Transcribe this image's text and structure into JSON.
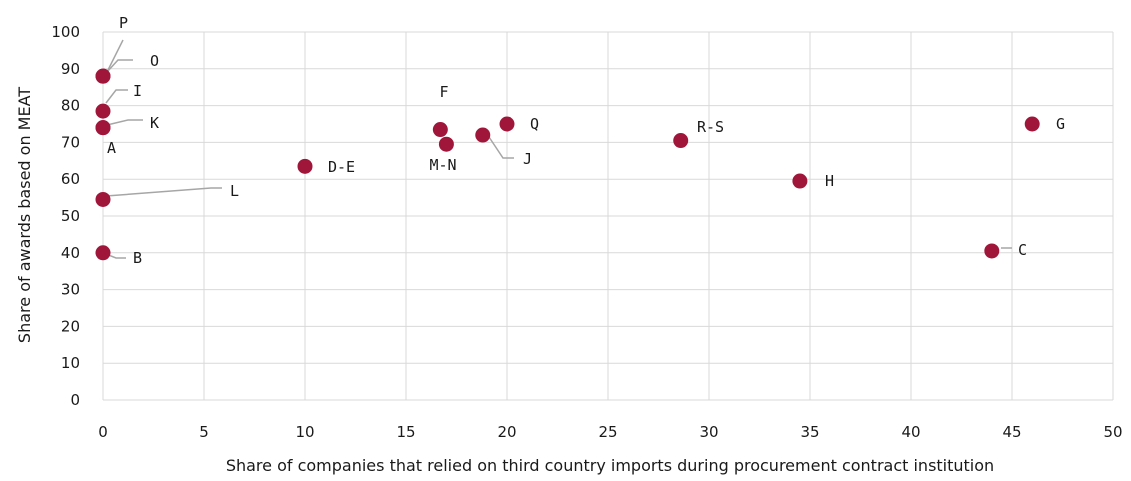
{
  "chart_data": {
    "type": "scatter",
    "title": "",
    "xlabel": "Share of companies that relied on third country imports during procurement contract institution",
    "ylabel": "Share of awards based on MEAT",
    "xlim": [
      0,
      50
    ],
    "ylim": [
      0,
      100
    ],
    "x_ticks": [
      "0",
      "5",
      "10",
      "15",
      "20",
      "25",
      "30",
      "35",
      "40",
      "45",
      "50"
    ],
    "y_ticks": [
      "0",
      "10",
      "20",
      "30",
      "40",
      "50",
      "60",
      "70",
      "80",
      "90",
      "100"
    ],
    "grid": true,
    "marker_color": "#a0163a",
    "points": [
      {
        "label": "P",
        "x": 0,
        "y": 88
      },
      {
        "label": "O",
        "x": 0,
        "y": 88
      },
      {
        "label": "I",
        "x": 0,
        "y": 78.5
      },
      {
        "label": "K",
        "x": 0,
        "y": 74
      },
      {
        "label": "A",
        "x": 0,
        "y": 74
      },
      {
        "label": "L",
        "x": 0,
        "y": 54.5
      },
      {
        "label": "B",
        "x": 0,
        "y": 40
      },
      {
        "label": "D-E",
        "x": 10,
        "y": 63.5
      },
      {
        "label": "F",
        "x": 16.7,
        "y": 73.5
      },
      {
        "label": "M-N",
        "x": 17,
        "y": 69.5
      },
      {
        "label": "J",
        "x": 18.8,
        "y": 72
      },
      {
        "label": "Q",
        "x": 20,
        "y": 75
      },
      {
        "label": "R-S",
        "x": 28.6,
        "y": 70.5
      },
      {
        "label": "H",
        "x": 34.5,
        "y": 59.5
      },
      {
        "label": "C",
        "x": 44,
        "y": 40.5
      },
      {
        "label": "G",
        "x": 46,
        "y": 75
      }
    ]
  }
}
